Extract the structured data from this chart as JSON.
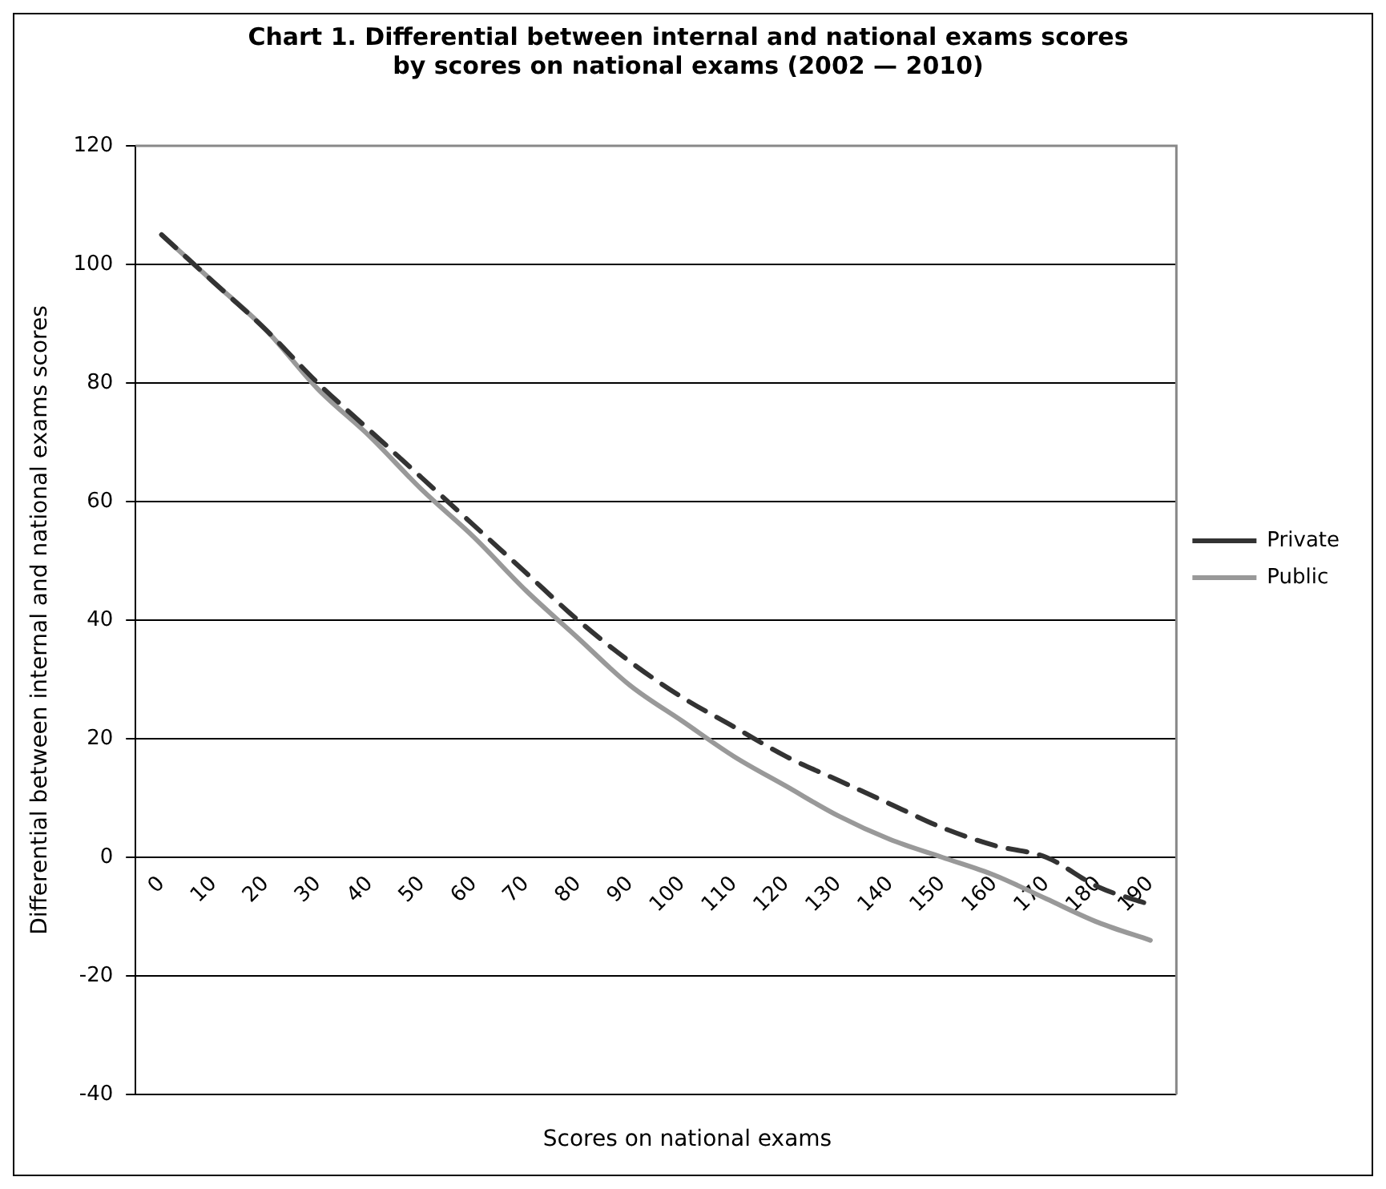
{
  "chart_data": {
    "type": "line",
    "title": "Chart 1. Differential between internal and national exams scores by scores on national exams (2002 — 2010)",
    "xlabel": "Scores on national exams",
    "ylabel": "Differential between internal and national exams scores",
    "categories": [
      "0",
      "10",
      "20",
      "30",
      "40",
      "50",
      "60",
      "70",
      "80",
      "90",
      "100",
      "110",
      "120",
      "130",
      "140",
      "150",
      "160",
      "170",
      "180",
      "190"
    ],
    "series": [
      {
        "name": "Private",
        "color": "#333333",
        "line_style": "dashed",
        "values": [
          105,
          97,
          89,
          80,
          72,
          64,
          56,
          48,
          40,
          33,
          27,
          22,
          17,
          13,
          9,
          5,
          2,
          0,
          -5,
          -8
        ]
      },
      {
        "name": "Public",
        "color": "#999999",
        "line_style": "solid",
        "values": [
          105,
          97,
          89,
          79,
          71,
          62,
          54,
          45,
          37,
          29,
          23,
          17,
          12,
          7,
          3,
          0,
          -3,
          -7,
          -11,
          -14
        ]
      }
    ],
    "ylim": [
      -40,
      120
    ],
    "yticks": [
      -40,
      -20,
      0,
      20,
      40,
      60,
      80,
      100,
      120
    ],
    "grid": "y",
    "legend": "right",
    "marker": "none"
  }
}
